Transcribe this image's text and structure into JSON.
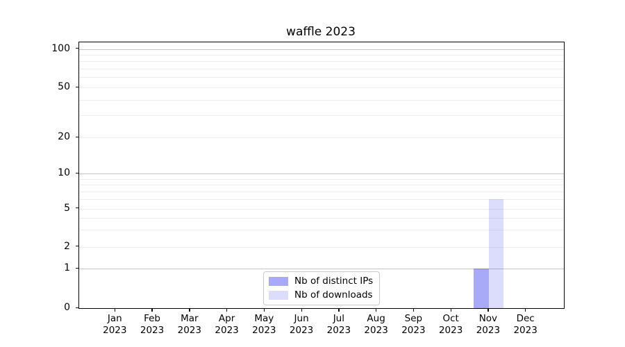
{
  "chart_data": {
    "type": "bar",
    "title": "waffle 2023",
    "categories": [
      "Jan 2023",
      "Feb 2023",
      "Mar 2023",
      "Apr 2023",
      "May 2023",
      "Jun 2023",
      "Jul 2023",
      "Aug 2023",
      "Sep 2023",
      "Oct 2023",
      "Nov 2023",
      "Dec 2023"
    ],
    "series": [
      {
        "name": "Nb of distinct IPs",
        "color": "rgba(10,10,240,0.35)",
        "values": [
          0,
          0,
          0,
          0,
          0,
          0,
          0,
          0,
          0,
          0,
          1,
          0
        ]
      },
      {
        "name": "Nb of downloads",
        "color": "rgba(10,10,240,0.14)",
        "values": [
          0,
          0,
          0,
          0,
          0,
          0,
          0,
          0,
          0,
          0,
          6,
          0
        ]
      }
    ],
    "xlabel": "",
    "ylabel": "",
    "yscale": "asinh-like (linear 0-1, logarithmic above 1)",
    "ylim": [
      0,
      115
    ],
    "yticks": [
      {
        "value": 100,
        "label": "100"
      },
      {
        "value": 50,
        "label": "50"
      },
      {
        "value": 20,
        "label": "20"
      },
      {
        "value": 10,
        "label": "10"
      },
      {
        "value": 5,
        "label": "5"
      },
      {
        "value": 2,
        "label": "2"
      },
      {
        "value": 1,
        "label": "1"
      },
      {
        "value": 0,
        "label": "0"
      }
    ],
    "grid": {
      "major_values": [
        1,
        10,
        100
      ],
      "minor_values": [
        2,
        3,
        4,
        5,
        6,
        7,
        8,
        9,
        20,
        30,
        40,
        50,
        60,
        70,
        80,
        90
      ]
    },
    "legend_position": "lower center"
  },
  "legend": {
    "items": [
      {
        "label": "Nb of distinct IPs",
        "color": "rgba(10,10,240,0.35)"
      },
      {
        "label": "Nb of downloads",
        "color": "rgba(10,10,240,0.14)"
      }
    ]
  },
  "colors": {
    "grid_major": "#c6c6c6",
    "grid_minor": "#ededed",
    "axis_frame": "#000000",
    "text": "#000000",
    "background": "#ffffff"
  }
}
